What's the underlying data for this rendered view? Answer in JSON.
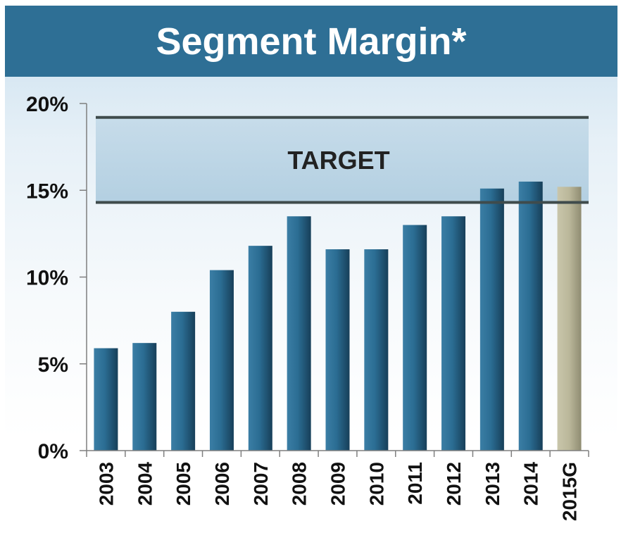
{
  "chart_data": {
    "type": "bar",
    "title": "Segment Margin*",
    "categories": [
      "2003",
      "2004",
      "2005",
      "2006",
      "2007",
      "2008",
      "2009",
      "2010",
      "2011",
      "2012",
      "2013",
      "2014",
      "2015G"
    ],
    "values": [
      5.9,
      6.2,
      8.0,
      10.4,
      11.8,
      13.5,
      11.6,
      11.6,
      13.0,
      13.5,
      15.1,
      15.5,
      15.2
    ],
    "ylim": [
      0,
      20
    ],
    "yticks": [
      0,
      5,
      10,
      15,
      20
    ],
    "ytick_labels": [
      "0%",
      "5%",
      "10%",
      "15%",
      "20%"
    ],
    "xlabel": "",
    "ylabel": "",
    "grid": false,
    "target_band": {
      "label": "TARGET",
      "low": 14.3,
      "high": 19.2
    },
    "colors": {
      "bar": "#2b6d93",
      "bar_highlight": "#bab79a",
      "band": "#a9c9dd",
      "band_line": "#3f4b4c",
      "title_bg": "#2e6f95"
    },
    "highlighted_categories": [
      "2015G"
    ]
  }
}
